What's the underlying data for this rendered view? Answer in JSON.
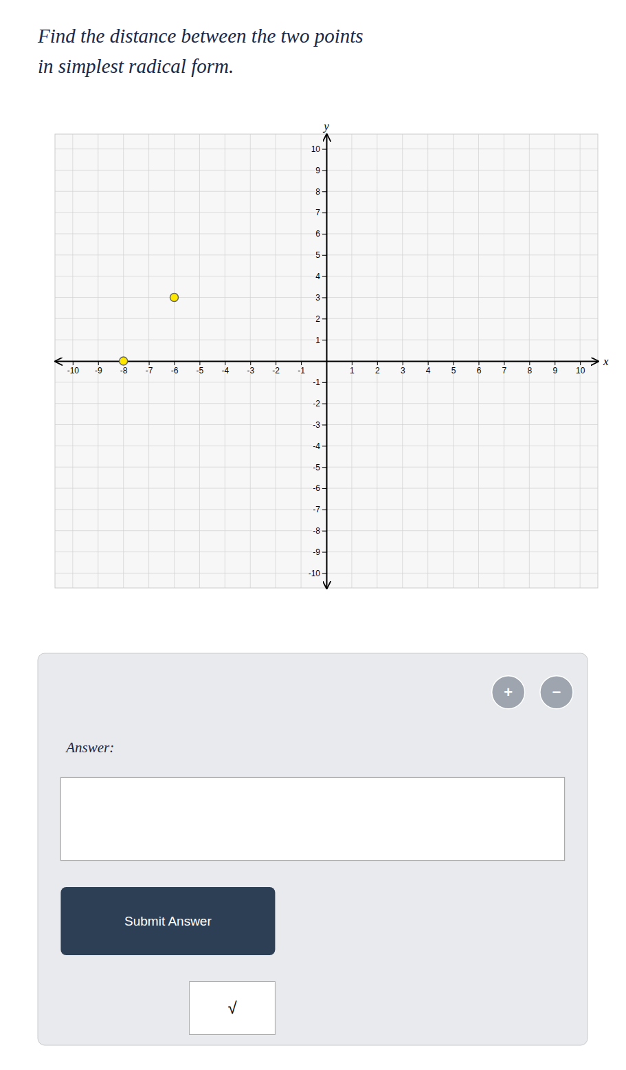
{
  "chart_data": {
    "type": "scatter",
    "title": "Find the distance between the two points\nin simplest radical form.",
    "x_label": "x",
    "y_label": "y",
    "x": [
      -8,
      -6
    ],
    "values": [
      0,
      3
    ],
    "color": "#FFE800",
    "xlim": [
      -10.7,
      10.7
    ],
    "ylim": [
      -10.7,
      10.7
    ],
    "xticks": [
      -10,
      -9,
      -8,
      -7,
      -6,
      -5,
      -4,
      -3,
      -2,
      -1,
      1,
      2,
      3,
      4,
      5,
      6,
      7,
      8,
      9,
      10
    ],
    "yticks": [
      -10,
      -9,
      -8,
      -7,
      -6,
      -5,
      -4,
      -3,
      -2,
      -1,
      1,
      2,
      3,
      4,
      5,
      6,
      7,
      8,
      9,
      10
    ],
    "grid": true,
    "annotations": [
      "+",
      "−",
      "Answer:",
      "Submit Answer",
      "√"
    ]
  }
}
